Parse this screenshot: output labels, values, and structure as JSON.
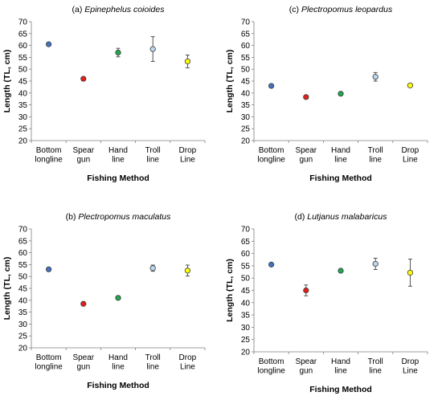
{
  "chart_data": [
    {
      "type": "scatter",
      "title_prefix": "(a)",
      "title_species": "Epinephelus coioides",
      "xlabel": "Fishing Method",
      "ylabel": "Length (TL, cm)",
      "ylim": [
        20,
        70
      ],
      "yticks": [
        20,
        25,
        30,
        35,
        40,
        45,
        50,
        55,
        60,
        65,
        70
      ],
      "categories": [
        [
          "Bottom",
          "longline"
        ],
        [
          "Spear",
          "gun"
        ],
        [
          "Hand",
          "line"
        ],
        [
          "Troll",
          "line"
        ],
        [
          "Drop",
          "Line"
        ]
      ],
      "values": [
        60.5,
        46,
        57,
        58.5,
        53.3
      ],
      "errors": [
        0,
        0,
        1.8,
        5.2,
        2.7
      ],
      "colors": [
        "#4472c4",
        "#e0201b",
        "#22a850",
        "#bdd7ee",
        "#ffff00"
      ],
      "grid": false
    },
    {
      "type": "scatter",
      "title_prefix": "(c)",
      "title_species": "Plectropomus leopardus",
      "xlabel": "Fishing Method",
      "ylabel": "Length (TL, cm)",
      "ylim": [
        20,
        70
      ],
      "yticks": [
        20,
        25,
        30,
        35,
        40,
        45,
        50,
        55,
        60,
        65,
        70
      ],
      "categories": [
        [
          "Bottom",
          "longline"
        ],
        [
          "Spear",
          "gun"
        ],
        [
          "Hand",
          "line"
        ],
        [
          "Troll",
          "line"
        ],
        [
          "Drop",
          "Line"
        ]
      ],
      "values": [
        43,
        38.3,
        39.7,
        46.8,
        43.2
      ],
      "errors": [
        0,
        0,
        0,
        1.8,
        0
      ],
      "colors": [
        "#4472c4",
        "#e0201b",
        "#22a850",
        "#bdd7ee",
        "#ffff00"
      ],
      "grid": false
    },
    {
      "type": "scatter",
      "title_prefix": "(b)",
      "title_species": "Plectropomus maculatus",
      "xlabel": "Fishing Method",
      "ylabel": "Length (TL, cm)",
      "ylim": [
        20,
        70
      ],
      "yticks": [
        20,
        25,
        30,
        35,
        40,
        45,
        50,
        55,
        60,
        65,
        70
      ],
      "categories": [
        [
          "Bottom",
          "longline"
        ],
        [
          "Spear",
          "gun"
        ],
        [
          "Hand",
          "line"
        ],
        [
          "Troll",
          "line"
        ],
        [
          "Drop",
          "Line"
        ]
      ],
      "values": [
        53,
        38.5,
        41,
        53.5,
        52.5
      ],
      "errors": [
        0,
        0,
        0,
        1.3,
        2.3
      ],
      "colors": [
        "#4472c4",
        "#e0201b",
        "#22a850",
        "#bdd7ee",
        "#ffff00"
      ],
      "grid": false
    },
    {
      "type": "scatter",
      "title_prefix": "(d)",
      "title_species": "Lutjanus malabaricus",
      "xlabel": "Fishing Method",
      "ylabel": "Length (TL, cm)",
      "ylim": [
        20,
        70
      ],
      "yticks": [
        20,
        25,
        30,
        35,
        40,
        45,
        50,
        55,
        60,
        65,
        70
      ],
      "categories": [
        [
          "Bottom",
          "longline"
        ],
        [
          "Spear",
          "gun"
        ],
        [
          "Hand",
          "line"
        ],
        [
          "Troll",
          "line"
        ],
        [
          "Drop",
          "Line"
        ]
      ],
      "values": [
        55.5,
        45,
        53,
        55.8,
        52.2
      ],
      "errors": [
        0,
        2.2,
        0,
        2.3,
        5.5
      ],
      "colors": [
        "#4472c4",
        "#e0201b",
        "#22a850",
        "#bdd7ee",
        "#ffff00"
      ],
      "grid": false
    }
  ]
}
